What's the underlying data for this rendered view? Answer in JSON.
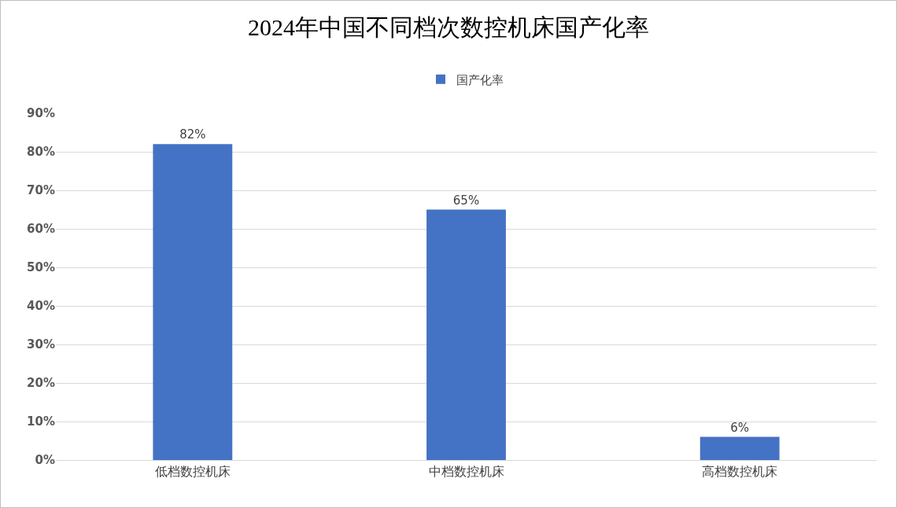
{
  "chart_data": {
    "type": "bar",
    "title": "2024年中国不同档次数控机床国产化率",
    "categories": [
      "低档数控机床",
      "中档数控机床",
      "高档数控机床"
    ],
    "series": [
      {
        "name": "国产化率",
        "color": "#4472c4",
        "values": [
          82,
          65,
          6
        ],
        "value_labels": [
          "82%",
          "65%",
          "6%"
        ]
      }
    ],
    "ylim": [
      0,
      90
    ],
    "yticks": [
      {
        "value": 0,
        "label": "0%"
      },
      {
        "value": 10,
        "label": "10%"
      },
      {
        "value": 20,
        "label": "20%"
      },
      {
        "value": 30,
        "label": "30%"
      },
      {
        "value": 40,
        "label": "40%"
      },
      {
        "value": 50,
        "label": "50%"
      },
      {
        "value": 60,
        "label": "60%"
      },
      {
        "value": 70,
        "label": "70%"
      },
      {
        "value": 80,
        "label": "80%"
      },
      {
        "value": 90,
        "label": "90%"
      }
    ],
    "grid": "y",
    "legend": "top"
  }
}
